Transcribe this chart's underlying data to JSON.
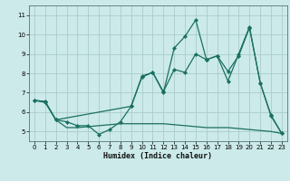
{
  "xlabel": "Humidex (Indice chaleur)",
  "bg_color": "#cceaea",
  "grid_color": "#aacccc",
  "line_color": "#1a7060",
  "xlim": [
    -0.5,
    23.5
  ],
  "ylim": [
    4.5,
    11.5
  ],
  "xticks": [
    0,
    1,
    2,
    3,
    4,
    5,
    6,
    7,
    8,
    9,
    10,
    11,
    12,
    13,
    14,
    15,
    16,
    17,
    18,
    19,
    20,
    21,
    22,
    23
  ],
  "yticks": [
    5,
    6,
    7,
    8,
    9,
    10,
    11
  ],
  "line1_x": [
    0,
    1,
    2,
    3,
    4,
    5,
    6,
    7,
    8,
    9,
    10,
    11,
    12,
    13,
    14,
    15,
    16,
    17,
    18,
    19,
    20,
    21,
    22,
    23
  ],
  "line1_y": [
    6.6,
    6.5,
    5.6,
    5.5,
    5.3,
    5.3,
    4.85,
    5.1,
    5.5,
    6.3,
    7.8,
    8.05,
    7.0,
    9.3,
    9.9,
    10.75,
    8.7,
    8.9,
    7.6,
    9.0,
    10.4,
    7.5,
    5.8,
    4.9
  ],
  "line2_x": [
    0,
    1,
    2,
    3,
    4,
    5,
    6,
    7,
    8,
    9,
    10,
    11,
    12,
    13,
    14,
    15,
    16,
    17,
    18,
    19,
    20,
    21,
    22,
    23
  ],
  "line2_y": [
    6.6,
    6.55,
    5.6,
    5.2,
    5.2,
    5.25,
    5.3,
    5.35,
    5.4,
    5.4,
    5.4,
    5.4,
    5.4,
    5.35,
    5.3,
    5.25,
    5.2,
    5.2,
    5.2,
    5.15,
    5.1,
    5.05,
    5.0,
    4.9
  ],
  "line3_x": [
    0,
    1,
    2,
    9,
    10,
    11,
    12,
    13,
    14,
    15,
    16,
    17,
    18,
    19,
    20,
    21,
    22,
    23
  ],
  "line3_y": [
    6.6,
    6.55,
    5.6,
    6.3,
    7.85,
    8.05,
    7.05,
    8.2,
    8.05,
    9.0,
    8.7,
    8.9,
    8.1,
    8.9,
    10.35,
    7.5,
    5.85,
    4.9
  ]
}
